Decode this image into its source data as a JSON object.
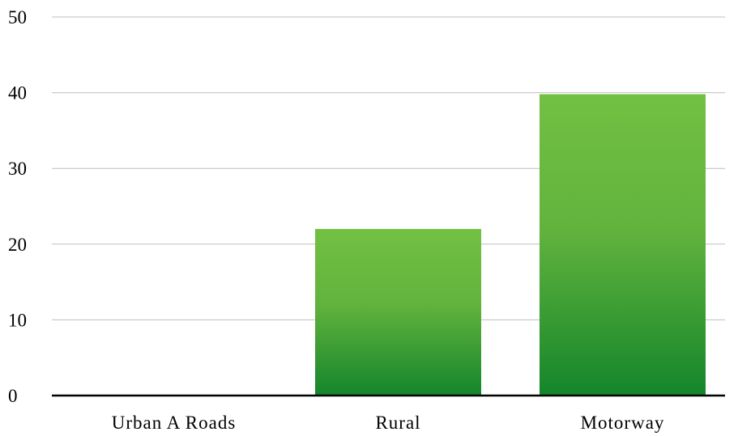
{
  "chart_data": {
    "type": "bar",
    "title": "",
    "xlabel": "",
    "ylabel": "",
    "categories": [
      "Urban A Roads",
      "Rural",
      "Motorway"
    ],
    "values": [
      0,
      22,
      39.8
    ],
    "ylim": [
      0,
      50
    ],
    "yticks": [
      "0",
      "10",
      "20",
      "30",
      "40",
      "50"
    ],
    "grid": true,
    "legend": "none",
    "colors": {
      "bar_top": "#72c043",
      "bar_bottom": "#14852b",
      "gridline": "#bfbfbf",
      "axis": "#000000"
    }
  }
}
